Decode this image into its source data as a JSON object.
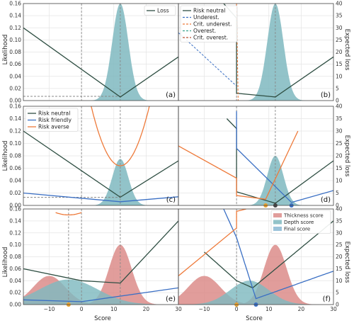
{
  "colors": {
    "grid": "#e4e4e4",
    "frame": "#444444",
    "neutral": "#2f4f43",
    "friendly": "#3a6fc4",
    "averse": "#ee7a3a",
    "teal_fill": "#7fb9c0",
    "red_fill": "#dc8c89",
    "blue_fill": "#89b8d4",
    "dash": "#888888",
    "crit_under": "#ee7a3a",
    "overest": "#3aa38e",
    "crit_over": "#bb5533",
    "dot_neutral": "#444444",
    "dot_friendly": "#3a6fc4",
    "dot_averse": "#e8a02e"
  },
  "axes": {
    "xlabel": "Score",
    "ylabel_left": "Likelihood",
    "ylabel_right": "Expected loss"
  },
  "chart_data": [
    {
      "panel": "(a)",
      "type": "line",
      "xlim": [
        -18,
        30
      ],
      "ylim_left": [
        0,
        0.16
      ],
      "ylim_right": [
        0,
        40
      ],
      "xticks": [
        "-10",
        "0",
        "10",
        "20",
        "30"
      ],
      "yticks_left": [
        "0.00",
        "0.02",
        "0.04",
        "0.06",
        "0.08",
        "0.10",
        "0.12",
        "0.14",
        "0.16"
      ],
      "yticks_right": [
        "0",
        "5",
        "10",
        "15",
        "20",
        "25",
        "30",
        "35",
        "40"
      ],
      "grid": true,
      "legend_position": "top-right",
      "likelihood": {
        "shape": "gaussian",
        "mean": 12,
        "sd": 2.5,
        "peak": 0.16
      },
      "series": [
        {
          "name": "Loss",
          "axis": "right",
          "x": [
            -18,
            12,
            30
          ],
          "y": [
            30,
            1.5,
            18
          ]
        }
      ],
      "markers": {
        "vlines": [
          0,
          12
        ],
        "hline_left": 0.007
      }
    },
    {
      "panel": "(b)",
      "type": "line",
      "xlim": [
        -18,
        30
      ],
      "ylim_left": [
        0,
        0.16
      ],
      "ylim_right": [
        0,
        40
      ],
      "grid": true,
      "legend_position": "top-left",
      "likelihood": {
        "shape": "gaussian",
        "mean": 12,
        "sd": 2.5,
        "peak": 0.16
      },
      "series": [
        {
          "name": "Risk neutral",
          "axis": "right",
          "x": [
            -4,
            0,
            0,
            12,
            30
          ],
          "y": [
            40,
            34,
            3,
            1.5,
            18
          ]
        },
        {
          "name": "Underest.",
          "axis": "right",
          "x": [
            -18,
            0
          ],
          "y": [
            28,
            6
          ]
        },
        {
          "name": "Crit. underest.",
          "axis": "right",
          "x": [
            0,
            0.5
          ],
          "y": [
            40,
            0
          ]
        },
        {
          "name": "Overest.",
          "axis": "right",
          "x": [],
          "y": []
        },
        {
          "name": "Crit. overest.",
          "axis": "right",
          "x": [],
          "y": []
        }
      ],
      "markers": {
        "vlines": [
          0,
          12
        ]
      }
    },
    {
      "panel": "(c)",
      "type": "line",
      "xlim": [
        -18,
        30
      ],
      "ylim_left": [
        0,
        0.16
      ],
      "ylim_right": [
        0,
        40
      ],
      "grid": true,
      "legend_position": "top-left",
      "likelihood": {
        "shape": "gaussian",
        "mean": 12,
        "sd": 2.5,
        "peak": 0.075
      },
      "series": [
        {
          "name": "Risk neutral",
          "axis": "right",
          "x": [
            -18,
            12,
            30
          ],
          "y": [
            30,
            3.3,
            18
          ]
        },
        {
          "name": "Risk friendly",
          "axis": "right",
          "x": [
            -18,
            12,
            30
          ],
          "y": [
            5,
            1.5,
            3.5
          ]
        },
        {
          "name": "Risk averse",
          "axis": "right",
          "x": [
            3,
            12,
            21
          ],
          "y": [
            40,
            16,
            40
          ]
        }
      ],
      "markers": {
        "vlines": [
          0,
          12
        ],
        "hline_left": 0.013
      }
    },
    {
      "panel": "(d)",
      "type": "line",
      "xlim": [
        -18,
        30
      ],
      "ylim_left": [
        0,
        0.16
      ],
      "ylim_right": [
        0,
        40
      ],
      "grid": true,
      "likelihood": {
        "shape": "gaussian",
        "mean": 12,
        "sd": 2.5,
        "peak": 0.08
      },
      "series": [
        {
          "name": "Risk neutral",
          "axis": "right",
          "x": [
            -3,
            0,
            0,
            12,
            30
          ],
          "y": [
            35,
            31,
            5.5,
            0.9,
            18
          ]
        },
        {
          "name": "Risk friendly",
          "axis": "right",
          "x": [
            0,
            0,
            17,
            30
          ],
          "y": [
            38,
            23,
            1.2,
            6
          ]
        },
        {
          "name": "Risk averse",
          "axis": "right",
          "x": [
            -18,
            0,
            0,
            9,
            19
          ],
          "y": [
            24,
            11,
            4,
            2.5,
            30
          ]
        }
      ],
      "optima": {
        "Risk averse": 9,
        "Risk neutral": 12,
        "Risk friendly": 17
      },
      "markers": {
        "vlines": [
          0,
          12
        ]
      }
    },
    {
      "panel": "(e)",
      "type": "area",
      "xlim": [
        -18,
        30
      ],
      "ylim_left": [
        0,
        0.16
      ],
      "ylim_right": [
        0,
        40
      ],
      "grid": true,
      "series": [
        {
          "name": "Thickness score",
          "axis": "left",
          "bimodal": [
            {
              "mean": -10,
              "sd": 5,
              "peak": 0.048
            },
            {
              "mean": 12,
              "sd": 3.5,
              "peak": 0.1
            }
          ]
        },
        {
          "name": "Depth score",
          "axis": "left",
          "gaussian": {
            "mean": -4,
            "sd": 9,
            "peak": 0.042
          }
        },
        {
          "name": "Risk neutral",
          "axis": "right",
          "x": [
            -18,
            0,
            12,
            30
          ],
          "y": [
            15,
            10,
            9,
            35
          ]
        },
        {
          "name": "Risk friendly",
          "axis": "right",
          "x": [
            -18,
            0,
            30
          ],
          "y": [
            2,
            1.2,
            7
          ]
        },
        {
          "name": "Risk averse",
          "axis": "right",
          "x": [
            -8,
            -4,
            0
          ],
          "y": [
            38.5,
            37.5,
            38.5
          ]
        }
      ],
      "optima": {
        "Risk averse": -4
      },
      "markers": {
        "vlines": [
          -4,
          0,
          12
        ]
      }
    },
    {
      "panel": "(f)",
      "type": "area",
      "xlim": [
        -18,
        30
      ],
      "ylim_left": [
        0,
        0.16
      ],
      "ylim_right": [
        0,
        40
      ],
      "grid": true,
      "legend_position": "top-right",
      "series": [
        {
          "name": "Thickness score",
          "axis": "left",
          "bimodal": [
            {
              "mean": -10,
              "sd": 5,
              "peak": 0.048
            },
            {
              "mean": 12,
              "sd": 3.5,
              "peak": 0.1
            }
          ]
        },
        {
          "name": "Depth score",
          "axis": "left",
          "gaussian": {
            "mean": 4,
            "sd": 6,
            "peak": 0.04
          }
        },
        {
          "name": "Final score",
          "axis": "left",
          "gaussian": {
            "mean": 4,
            "sd": 6,
            "peak": 0.04
          }
        },
        {
          "name": "Risk neutral",
          "axis": "right",
          "x": [
            -10,
            0,
            5,
            30
          ],
          "y": [
            22,
            10,
            7,
            35
          ]
        },
        {
          "name": "Risk friendly",
          "axis": "right",
          "x": [
            -4,
            0,
            6,
            30
          ],
          "y": [
            40,
            28,
            2.5,
            14
          ]
        },
        {
          "name": "Risk averse",
          "axis": "right",
          "x": [
            -18,
            0,
            0,
            3
          ],
          "y": [
            12,
            32,
            39,
            40
          ]
        }
      ],
      "optima": {
        "Risk averse": 0,
        "Risk friendly": 6
      },
      "markers": {
        "vlines": [
          0
        ]
      }
    }
  ]
}
